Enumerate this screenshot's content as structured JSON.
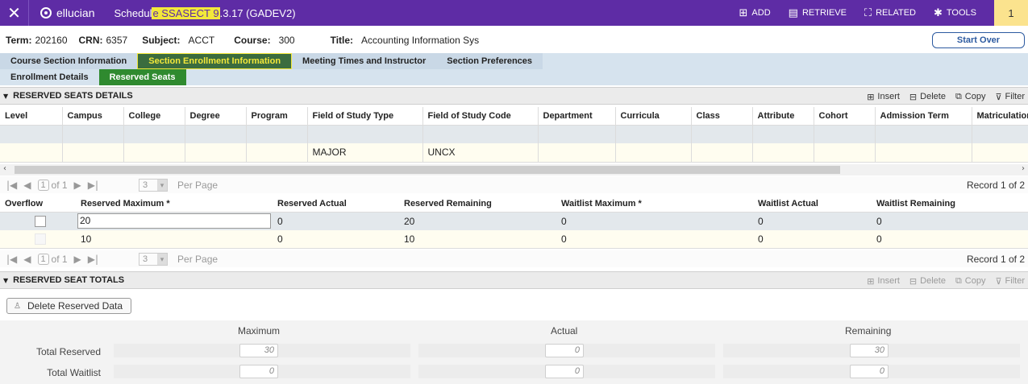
{
  "topbar": {
    "close_icon": "close-icon",
    "brand": "ellucian",
    "title_pre": "Schedul",
    "title_hl": "e SSASECT 9",
    "title_post": ".3.17 (GADEV2)",
    "actions": [
      {
        "label": "ADD",
        "icon": "add-icon"
      },
      {
        "label": "RETRIEVE",
        "icon": "retrieve-icon"
      },
      {
        "label": "RELATED",
        "icon": "related-icon"
      },
      {
        "label": "TOOLS",
        "icon": "gear-icon"
      }
    ],
    "badge": "1"
  },
  "keyblock": {
    "term_label": "Term:",
    "term": "202160",
    "crn_label": "CRN:",
    "crn": "6357",
    "subject_label": "Subject:",
    "subject": "ACCT",
    "course_label": "Course:",
    "course": "300",
    "title_label": "Title:",
    "title": "Accounting Information Sys",
    "start_over": "Start Over"
  },
  "tabs": {
    "primary": [
      "Course Section Information",
      "Section Enrollment Information",
      "Meeting Times and Instructor",
      "Section Preferences"
    ],
    "secondary": [
      "Enrollment Details",
      "Reserved Seats"
    ]
  },
  "reserved_details": {
    "title": "RESERVED SEATS DETAILS",
    "tools": [
      "Insert",
      "Delete",
      "Copy",
      "Filter"
    ],
    "columns": [
      "Level",
      "Campus",
      "College",
      "Degree",
      "Program",
      "Field of Study Type",
      "Field of Study Code",
      "Department",
      "Curricula",
      "Class",
      "Attribute",
      "Cohort",
      "Admission Term",
      "Matriculation"
    ],
    "rows": [
      [
        "",
        "",
        "",
        "",
        "",
        "",
        "",
        "",
        "",
        "",
        "",
        "",
        "",
        ""
      ],
      [
        "",
        "",
        "",
        "",
        "",
        "MAJOR",
        "UNCX",
        "",
        "",
        "",
        "",
        "",
        "",
        ""
      ]
    ],
    "pager": {
      "page": "1",
      "of": "of 1",
      "per_page": "3",
      "per_page_label": "Per Page",
      "record": "Record 1 of 2"
    }
  },
  "reserved_max": {
    "columns": [
      "Overflow",
      "Reserved Maximum *",
      "Reserved Actual",
      "Reserved Remaining",
      "Waitlist Maximum *",
      "Waitlist Actual",
      "Waitlist Remaining"
    ],
    "rows": [
      [
        "",
        "20",
        "0",
        "20",
        "0",
        "0",
        "0"
      ],
      [
        "",
        "10",
        "0",
        "10",
        "0",
        "0",
        "0"
      ]
    ],
    "pager": {
      "page": "1",
      "of": "of 1",
      "per_page": "3",
      "per_page_label": "Per Page",
      "record": "Record 1 of 2"
    }
  },
  "totals": {
    "title": "RESERVED SEAT TOTALS",
    "tools": [
      "Insert",
      "Delete",
      "Copy",
      "Filter"
    ],
    "delete_button": "Delete Reserved Data",
    "col_headers": [
      "Maximum",
      "Actual",
      "Remaining"
    ],
    "rows": [
      {
        "label": "Total Reserved",
        "values": [
          "30",
          "0",
          "30"
        ]
      },
      {
        "label": "Total Waitlist",
        "values": [
          "0",
          "0",
          "0"
        ]
      }
    ]
  },
  "colors": {
    "brand": "#5e2ca5",
    "highlight": "#f3e83a",
    "active_tab": "#2f8a2f"
  }
}
